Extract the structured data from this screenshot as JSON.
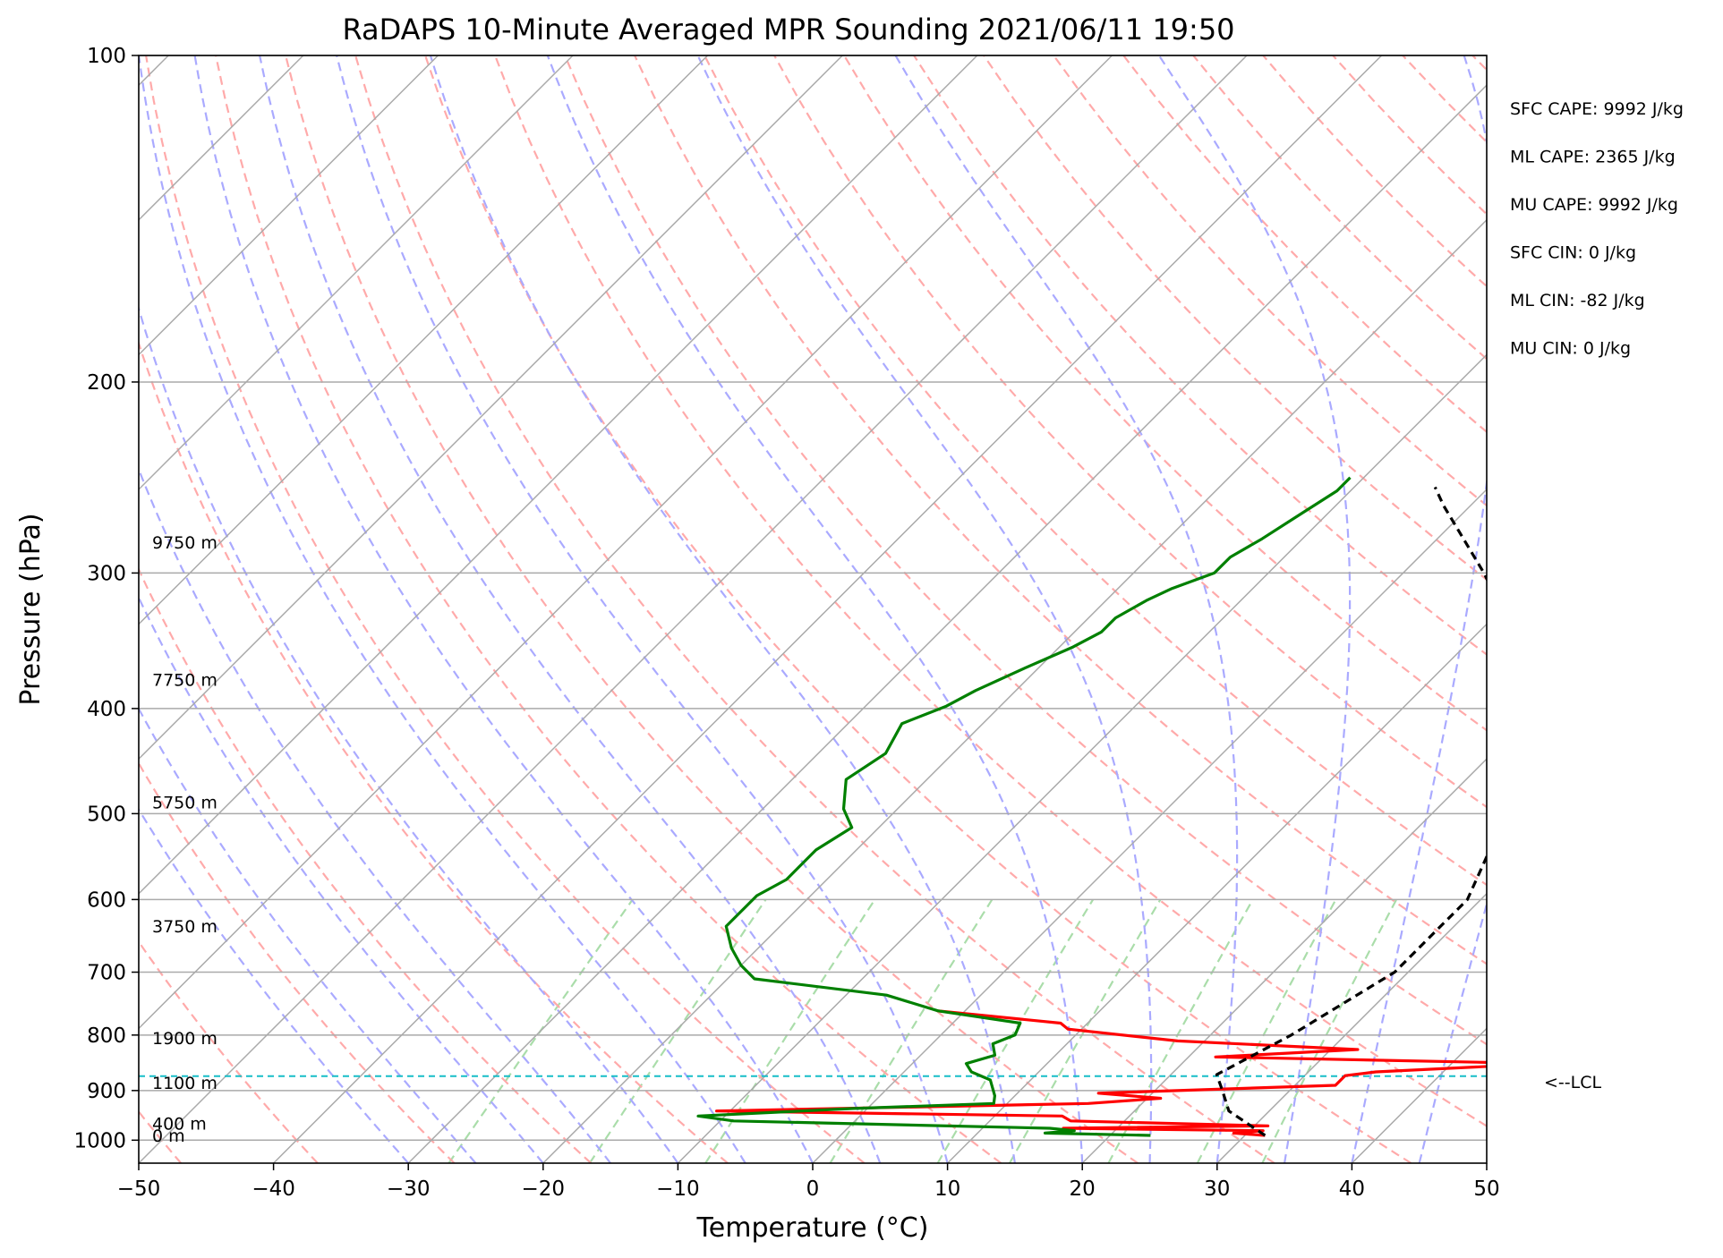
{
  "chart_data": {
    "type": "line",
    "title": "RaDAPS 10-Minute Averaged MPR Sounding 2021/06/11 19:50",
    "xlabel": "Temperature (°C)",
    "ylabel": "Pressure (hPa)",
    "xlim": [
      -50,
      50
    ],
    "ylim": [
      1050,
      100
    ],
    "y_scale": "log",
    "x_ticks": [
      -50,
      -40,
      -30,
      -20,
      -10,
      0,
      10,
      20,
      30,
      40,
      50
    ],
    "x_tick_labels": [
      "−50",
      "−40",
      "−30",
      "−20",
      "−10",
      "0",
      "10",
      "20",
      "30",
      "40",
      "50"
    ],
    "y_ticks": [
      100,
      200,
      300,
      400,
      500,
      600,
      700,
      800,
      900,
      1000
    ],
    "y_tick_labels": [
      "100",
      "200",
      "300",
      "400",
      "500",
      "600",
      "700",
      "800",
      "900",
      "1000"
    ],
    "grid": true,
    "skew": true,
    "series": [
      {
        "key": "temperature",
        "color": "#ff0000",
        "points": [
          [
            990,
            31.5
          ],
          [
            985,
            29
          ],
          [
            980,
            31
          ],
          [
            975,
            16
          ],
          [
            970,
            31
          ],
          [
            960,
            16
          ],
          [
            950,
            15
          ],
          [
            940,
            -11
          ],
          [
            925,
            16
          ],
          [
            915,
            21
          ],
          [
            905,
            16
          ],
          [
            890,
            33
          ],
          [
            872,
            33
          ],
          [
            865,
            35
          ],
          [
            850,
            47
          ],
          [
            838,
            22
          ],
          [
            825,
            32
          ],
          [
            810,
            18
          ],
          [
            790,
            9
          ],
          [
            780,
            8
          ],
          [
            760,
            -2
          ]
        ]
      },
      {
        "key": "dewpoint",
        "color": "#008000",
        "points": [
          [
            990,
            23
          ],
          [
            985,
            15
          ],
          [
            980,
            17
          ],
          [
            975,
            15
          ],
          [
            960,
            -9
          ],
          [
            950,
            -12
          ],
          [
            935,
            -1
          ],
          [
            925,
            9
          ],
          [
            910,
            8.5
          ],
          [
            880,
            7
          ],
          [
            865,
            5
          ],
          [
            850,
            4
          ],
          [
            835,
            5.5
          ],
          [
            815,
            4.5
          ],
          [
            800,
            5.5
          ],
          [
            780,
            5
          ],
          [
            760,
            -2
          ],
          [
            735,
            -7
          ],
          [
            710,
            -18
          ],
          [
            690,
            -20
          ],
          [
            665,
            -22
          ],
          [
            635,
            -24
          ],
          [
            615,
            -24
          ],
          [
            595,
            -24
          ],
          [
            575,
            -23
          ],
          [
            560,
            -23
          ],
          [
            540,
            -23
          ],
          [
            515,
            -22
          ],
          [
            495,
            -24
          ],
          [
            465,
            -26
          ],
          [
            440,
            -25
          ],
          [
            413,
            -26
          ],
          [
            398,
            -24
          ],
          [
            385,
            -23
          ],
          [
            367,
            -21
          ],
          [
            351,
            -19
          ],
          [
            340,
            -18
          ],
          [
            330,
            -18
          ],
          [
            318,
            -17
          ],
          [
            310,
            -16
          ],
          [
            300,
            -14
          ],
          [
            290,
            -14
          ],
          [
            279,
            -13
          ],
          [
            265,
            -12
          ],
          [
            252,
            -11
          ],
          [
            245,
            -11
          ]
        ]
      },
      {
        "key": "parcel",
        "color": "#000000",
        "dashed": true,
        "points": [
          [
            990,
            31.5
          ],
          [
            940,
            27
          ],
          [
            900,
            25
          ],
          [
            870,
            23.4
          ],
          [
            800,
            26
          ],
          [
            700,
            29
          ],
          [
            600,
            29
          ],
          [
            500,
            25.5
          ],
          [
            400,
            19.2
          ],
          [
            350,
            14
          ],
          [
            300,
            6
          ],
          [
            260,
            -2
          ],
          [
            250,
            -4
          ]
        ]
      }
    ],
    "lcl_pressure": 873,
    "lcl_label": "<--LCL",
    "height_labels": [
      {
        "p": 990,
        "text": "0 m"
      },
      {
        "p": 965,
        "text": "400 m"
      },
      {
        "p": 885,
        "text": "1100 m"
      },
      {
        "p": 805,
        "text": "1900 m"
      },
      {
        "p": 635,
        "text": "3750 m"
      },
      {
        "p": 488,
        "text": "5750 m"
      },
      {
        "p": 376,
        "text": "7750 m"
      },
      {
        "p": 281,
        "text": "9750 m"
      }
    ],
    "stats": [
      "SFC CAPE: 9992 J/kg",
      "ML CAPE: 2365 J/kg",
      "MU CAPE: 9992 J/kg",
      "SFC CIN: 0 J/kg",
      "ML CIN: -82 J/kg",
      "MU CIN: 0 J/kg"
    ],
    "colors": {
      "isotherm": "#aaaaaa",
      "dry_adiabat": "#ffaaaa",
      "moist_adiabat": "#aaaaff",
      "mixing_ratio": "#aaddaa",
      "lcl_line": "#17bec8"
    }
  }
}
